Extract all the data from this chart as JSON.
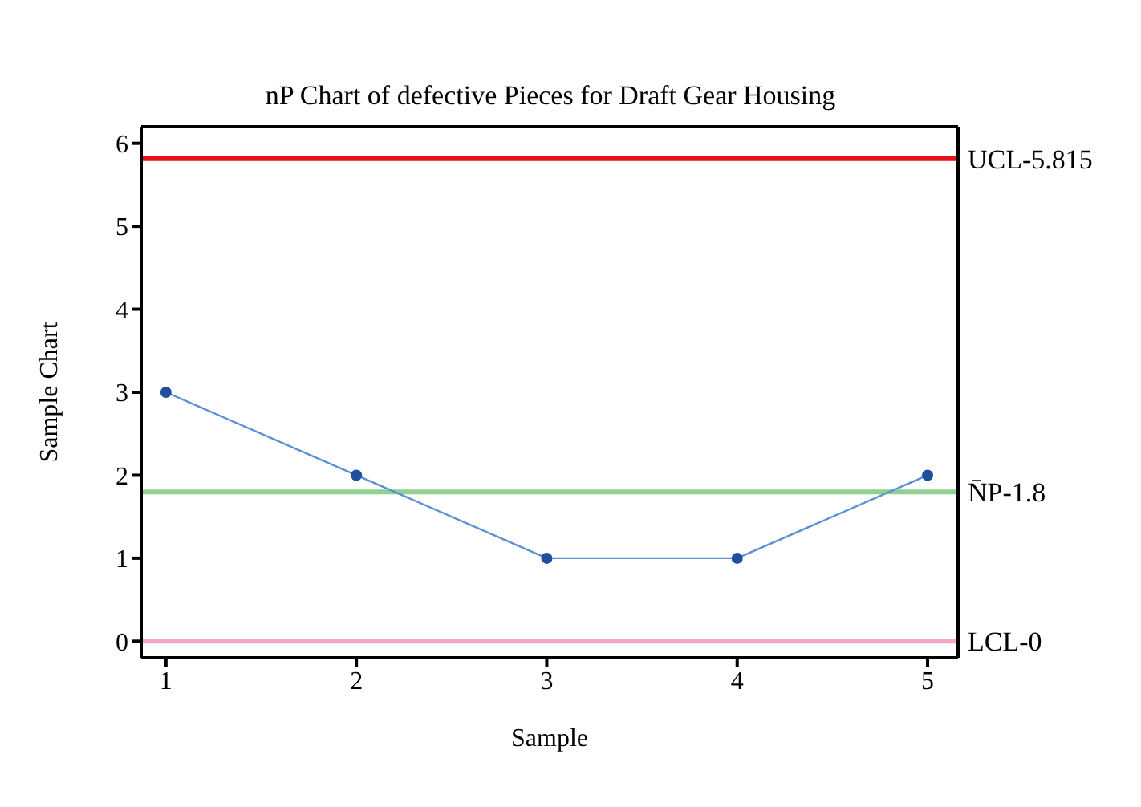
{
  "chart_data": {
    "type": "line",
    "title": "nP Chart of defective Pieces for Draft Gear Housing",
    "xlabel": "Sample",
    "ylabel": "Sample Chart",
    "x": [
      1,
      2,
      3,
      4,
      5
    ],
    "series": [
      {
        "color": "#5b8fd6",
        "values": [
          3,
          2,
          1,
          1,
          2
        ]
      }
    ],
    "marker": "circle",
    "xlim": [
      0.87,
      5.16
    ],
    "xticks": [
      1,
      2,
      3,
      4,
      5
    ],
    "ylim": [
      -0.2,
      6.2
    ],
    "yticks": [
      0,
      1,
      2,
      3,
      4,
      5,
      6
    ],
    "ref_lines": [
      {
        "axis": "y",
        "value": 5.815,
        "label": "UCL-5.815",
        "color": "#e8101a"
      },
      {
        "axis": "y",
        "value": 1.8,
        "label": "N̄P-1.8",
        "color": "#90d090"
      },
      {
        "axis": "y",
        "value": 0,
        "label": "LCL-0",
        "color": "#f4a6c8"
      }
    ]
  }
}
